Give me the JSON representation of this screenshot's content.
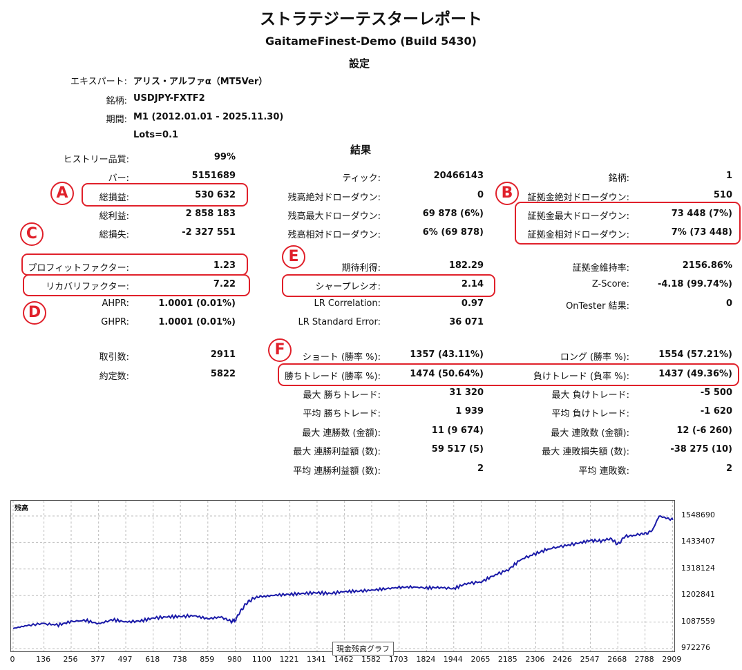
{
  "report": {
    "title": "ストラテジーテスターレポート",
    "subtitle": "GaitameFinest-Demo (Build 5430)",
    "settings_heading": "設定",
    "results_heading": "結果"
  },
  "settings": {
    "expert_label": "エキスパート:",
    "expert_value": "アリス・アルファα（MT5Ver）",
    "symbol_label": "銘柄:",
    "symbol_value": "USDJPY-FXTF2",
    "period_label": "期間:",
    "period_value": "M1 (2012.01.01 - 2025.11.30)",
    "inputs_value": "Lots=0.1"
  },
  "col1": [
    {
      "label": "ヒストリー品質:",
      "value": "99%"
    },
    {
      "label": "バー:",
      "value": "5151689"
    },
    {
      "label": "総損益:",
      "value": "530 632"
    },
    {
      "label": "総利益:",
      "value": "2 858 183"
    },
    {
      "label": "総損失:",
      "value": "-2 327 551"
    },
    {
      "label": "プロフィットファクター:",
      "value": "1.23"
    },
    {
      "label": "リカバリファクター:",
      "value": "7.22"
    },
    {
      "label": "AHPR:",
      "value": "1.0001 (0.01%)"
    },
    {
      "label": "GHPR:",
      "value": "1.0001 (0.01%)"
    },
    {
      "label": "取引数:",
      "value": "2911"
    },
    {
      "label": "約定数:",
      "value": "5822"
    }
  ],
  "col2": [
    {
      "label": "ティック:",
      "value": "20466143"
    },
    {
      "label": "残高絶対ドローダウン:",
      "value": "0"
    },
    {
      "label": "残高最大ドローダウン:",
      "value": "69 878 (6%)"
    },
    {
      "label": "残高相対ドローダウン:",
      "value": "6% (69 878)"
    },
    {
      "label": "期待利得:",
      "value": "182.29"
    },
    {
      "label": "シャープレシオ:",
      "value": "2.14"
    },
    {
      "label": "LR Correlation:",
      "value": "0.97"
    },
    {
      "label": "LR Standard Error:",
      "value": "36 071"
    },
    {
      "label": "ショート (勝率 %):",
      "value": "1357 (43.11%)"
    },
    {
      "label": "勝ちトレード (勝率 %):",
      "value": "1474 (50.64%)"
    },
    {
      "label": "最大 勝ちトレード:",
      "value": "31 320"
    },
    {
      "label": "平均 勝ちトレード:",
      "value": "1 939"
    },
    {
      "label": "最大 連勝数 (金額):",
      "value": "11 (9 674)"
    },
    {
      "label": "最大 連勝利益額 (数):",
      "value": "59 517 (5)"
    },
    {
      "label": "平均 連勝利益額 (数):",
      "value": "2"
    }
  ],
  "col3": [
    {
      "label": "銘柄:",
      "value": "1"
    },
    {
      "label": "証拠金絶対ドローダウン:",
      "value": "510"
    },
    {
      "label": "証拠金最大ドローダウン:",
      "value": "73 448 (7%)"
    },
    {
      "label": "証拠金相対ドローダウン:",
      "value": "7% (73 448)"
    },
    {
      "label": "証拠金維持率:",
      "value": "2156.86%"
    },
    {
      "label": "Z-Score:",
      "value": "-4.18 (99.74%)"
    },
    {
      "label": "OnTester 結果:",
      "value": "0"
    },
    {
      "label": "ロング (勝率 %):",
      "value": "1554 (57.21%)"
    },
    {
      "label": "負けトレード (負率 %):",
      "value": "1437 (49.36%)"
    },
    {
      "label": "最大 負けトレード:",
      "value": "-5 500"
    },
    {
      "label": "平均 負けトレード:",
      "value": "-1 620"
    },
    {
      "label": "最大 連敗数 (金額):",
      "value": "12 (-6 260)"
    },
    {
      "label": "最大 連敗損失額 (数):",
      "value": "-38 275 (10)"
    },
    {
      "label": "平均 連敗数:",
      "value": "2"
    }
  ],
  "markers": [
    "A",
    "B",
    "C",
    "D",
    "E",
    "F"
  ],
  "colors": {
    "accent_red": "#e0202a",
    "balance_line": "#1a1aa8",
    "grid": "#bdbdbd"
  },
  "chart_data": {
    "type": "line",
    "title": "残高",
    "legend": "現金残高グラフ",
    "x_ticks": [
      "0",
      "136",
      "256",
      "377",
      "497",
      "618",
      "738",
      "859",
      "980",
      "1100",
      "1221",
      "1341",
      "1462",
      "1582",
      "1703",
      "1824",
      "1944",
      "2065",
      "2185",
      "2306",
      "2426",
      "2547",
      "2668",
      "2788",
      "2909"
    ],
    "y_ticks": [
      "1548690",
      "1433407",
      "1318124",
      "1202841",
      "1087559",
      "972276"
    ],
    "ylim": [
      972276,
      1548690
    ],
    "xlim": [
      0,
      2911
    ],
    "series": [
      {
        "x": [
          0,
          60,
          136,
          200,
          256,
          320,
          377,
          440,
          497,
          560,
          618,
          680,
          738,
          800,
          859,
          920,
          960,
          980,
          1000,
          1030,
          1060,
          1100,
          1160,
          1221,
          1280,
          1341,
          1400,
          1462,
          1520,
          1582,
          1640,
          1703,
          1760,
          1824,
          1880,
          1944,
          2000,
          2065,
          2120,
          2185,
          2240,
          2306,
          2360,
          2426,
          2490,
          2547,
          2600,
          2640,
          2668,
          2700,
          2750,
          2788,
          2820,
          2850,
          2880,
          2911
        ],
        "y": [
          1060000,
          1072000,
          1080000,
          1075000,
          1090000,
          1095000,
          1080000,
          1098000,
          1088000,
          1092000,
          1105000,
          1110000,
          1112000,
          1115000,
          1102000,
          1110000,
          1090000,
          1095000,
          1130000,
          1170000,
          1190000,
          1198000,
          1205000,
          1208000,
          1212000,
          1215000,
          1212000,
          1220000,
          1222000,
          1226000,
          1232000,
          1238000,
          1240000,
          1236000,
          1238000,
          1233000,
          1255000,
          1262000,
          1290000,
          1315000,
          1360000,
          1385000,
          1405000,
          1418000,
          1430000,
          1442000,
          1440000,
          1448000,
          1425000,
          1460000,
          1465000,
          1470000,
          1485000,
          1548690,
          1540000,
          1532000
        ]
      }
    ]
  }
}
